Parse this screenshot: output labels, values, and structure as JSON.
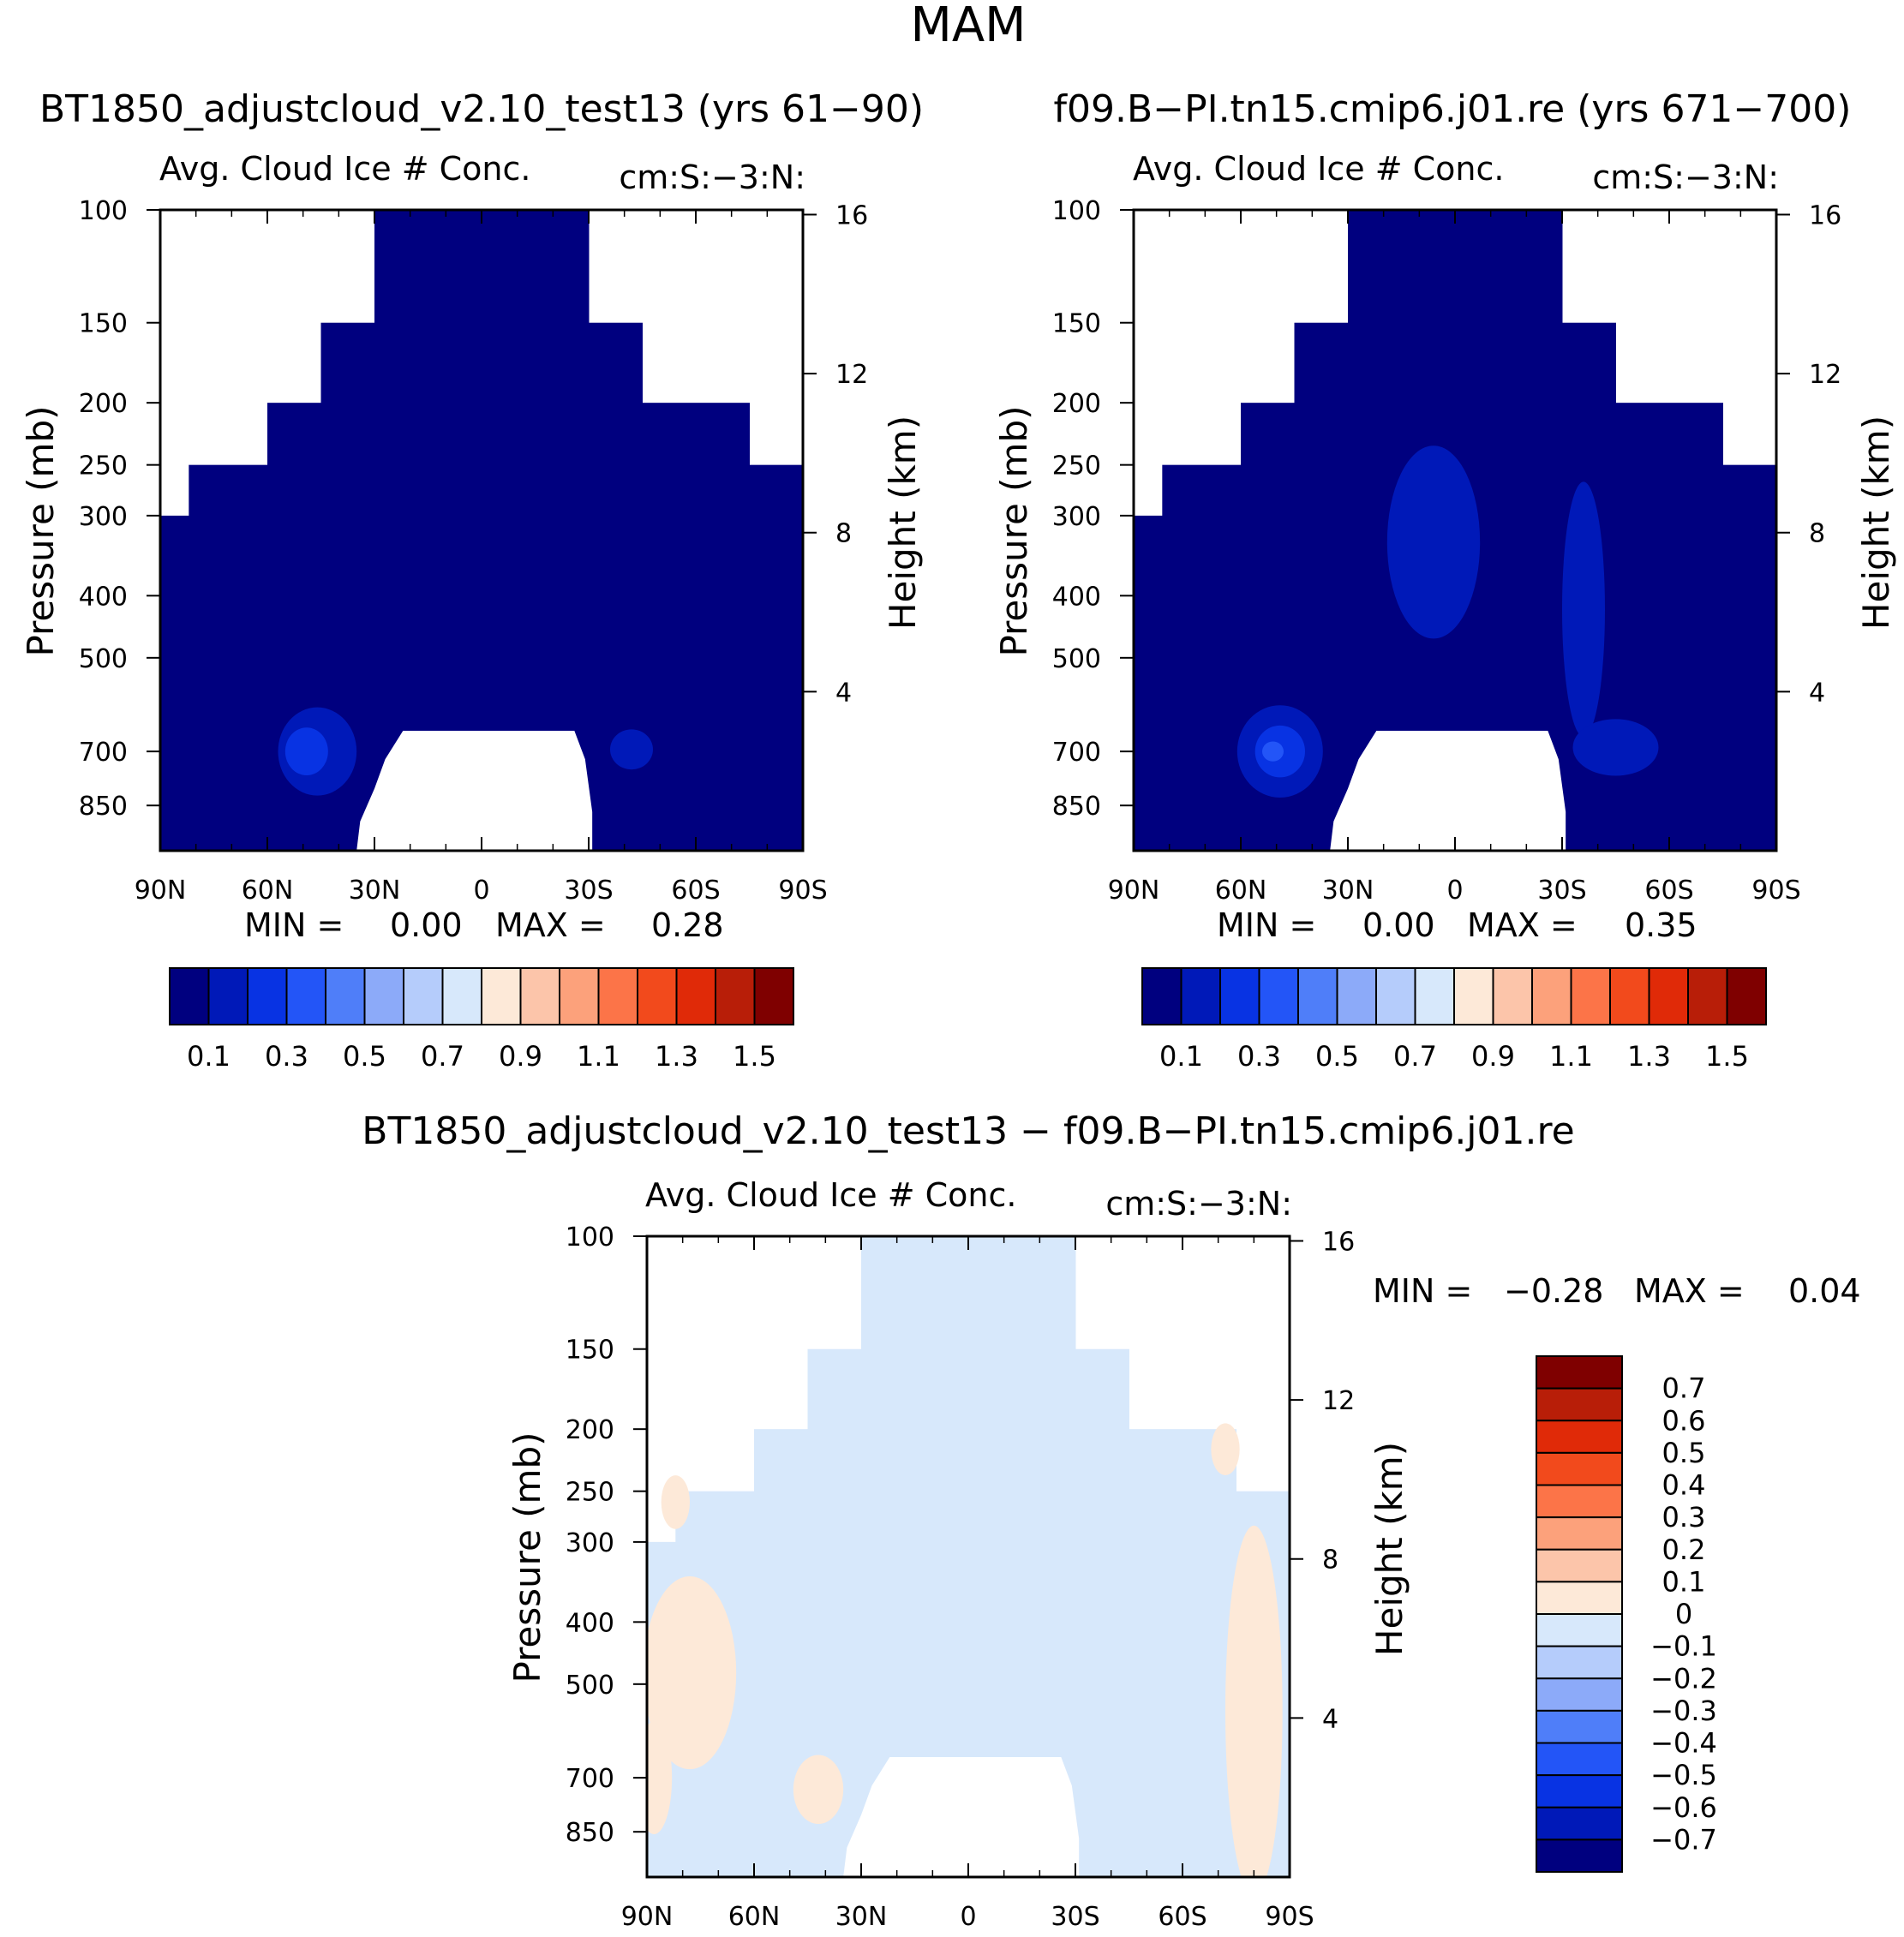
{
  "figure_title": "MAM",
  "chart_data": [
    {
      "type": "heatmap",
      "case_title": "BT1850_adjustcloud_v2.10_test13 (yrs 61−90)",
      "variable": "Avg. Cloud Ice # Conc.",
      "units": "cm:S:−3:N:",
      "xlabel": "",
      "ylabel": "Pressure (mb)",
      "ylabel_right": "Height (km)",
      "x_ticks": [
        "90N",
        "60N",
        "30N",
        "0",
        "30S",
        "60S",
        "90S"
      ],
      "y_ticks": [
        "100",
        "150",
        "200",
        "250",
        "300",
        "400",
        "500",
        "700",
        "850"
      ],
      "y_right_ticks": [
        "16",
        "12",
        "8",
        "4"
      ],
      "xlim": [
        -90,
        90
      ],
      "ylim": [
        100,
        1000
      ],
      "min_label": "MIN =",
      "min_value": "0.00",
      "max_label": "MAX =",
      "max_value": "0.28",
      "colorbar_labels": [
        "0.1",
        "0.3",
        "0.5",
        "0.7",
        "0.9",
        "1.1",
        "1.3",
        "1.5"
      ],
      "colorbar_colors": [
        "#00007f",
        "#0019b8",
        "#0833e3",
        "#2355f7",
        "#4f7ef9",
        "#8caaf9",
        "#b5ccfb",
        "#d7e8fb",
        "#fde9d8",
        "#fcc5aa",
        "#fca17b",
        "#fc7448",
        "#f24a1c",
        "#e02a08",
        "#b81e08",
        "#7f0000"
      ],
      "background_value": 0.02,
      "regions": [
        {
          "lat": -42,
          "p": 695,
          "dlat": 6,
          "dp": 50,
          "value": 0.1
        },
        {
          "lat": 46,
          "p": 700,
          "dlat": 11,
          "dp": 110,
          "value": 0.1
        },
        {
          "lat": 49,
          "p": 700,
          "dlat": 6,
          "dp": 60,
          "value": 0.22
        }
      ]
    },
    {
      "type": "heatmap",
      "case_title": "f09.B−PI.tn15.cmip6.j01.re (yrs 671−700)",
      "variable": "Avg. Cloud Ice # Conc.",
      "units": "cm:S:−3:N:",
      "xlabel": "",
      "ylabel": "Pressure (mb)",
      "ylabel_right": "Height (km)",
      "x_ticks": [
        "90N",
        "60N",
        "30N",
        "0",
        "30S",
        "60S",
        "90S"
      ],
      "y_ticks": [
        "100",
        "150",
        "200",
        "250",
        "300",
        "400",
        "500",
        "700",
        "850"
      ],
      "y_right_ticks": [
        "16",
        "12",
        "8",
        "4"
      ],
      "xlim": [
        -90,
        90
      ],
      "ylim": [
        100,
        1000
      ],
      "min_label": "MIN =",
      "min_value": "0.00",
      "max_label": "MAX =",
      "max_value": "0.35",
      "colorbar_labels": [
        "0.1",
        "0.3",
        "0.5",
        "0.7",
        "0.9",
        "1.1",
        "1.3",
        "1.5"
      ],
      "colorbar_colors": [
        "#00007f",
        "#0019b8",
        "#0833e3",
        "#2355f7",
        "#4f7ef9",
        "#8caaf9",
        "#b5ccfb",
        "#d7e8fb",
        "#fde9d8",
        "#fcc5aa",
        "#fca17b",
        "#fc7448",
        "#f24a1c",
        "#e02a08",
        "#b81e08",
        "#7f0000"
      ],
      "background_value": 0.02,
      "regions": [
        {
          "lat": -36,
          "p": 420,
          "dlat": 6,
          "dp": 180,
          "value": 0.1
        },
        {
          "lat": 6,
          "p": 330,
          "dlat": 13,
          "dp": 110,
          "value": 0.1
        },
        {
          "lat": -45,
          "p": 690,
          "dlat": 12,
          "dp": 70,
          "value": 0.1
        },
        {
          "lat": 49,
          "p": 700,
          "dlat": 12,
          "dp": 115,
          "value": 0.1
        },
        {
          "lat": 49,
          "p": 700,
          "dlat": 7,
          "dp": 65,
          "value": 0.22
        },
        {
          "lat": 51,
          "p": 700,
          "dlat": 3,
          "dp": 25,
          "value": 0.32
        }
      ]
    },
    {
      "type": "heatmap",
      "case_title": "BT1850_adjustcloud_v2.10_test13 − f09.B−PI.tn15.cmip6.j01.re",
      "variable": "Avg. Cloud Ice # Conc.",
      "units": "cm:S:−3:N:",
      "xlabel": "",
      "ylabel": "Pressure (mb)",
      "ylabel_right": "Height (km)",
      "x_ticks": [
        "90N",
        "60N",
        "30N",
        "0",
        "30S",
        "60S",
        "90S"
      ],
      "y_ticks": [
        "100",
        "150",
        "200",
        "250",
        "300",
        "400",
        "500",
        "700",
        "850"
      ],
      "y_right_ticks": [
        "16",
        "12",
        "8",
        "4"
      ],
      "xlim": [
        -90,
        90
      ],
      "ylim": [
        100,
        1000
      ],
      "min_label": "MIN =",
      "min_value": "−0.28",
      "max_label": "MAX =",
      "max_value": "0.04",
      "colorbar_labels": [
        "0.7",
        "0.6",
        "0.5",
        "0.4",
        "0.3",
        "0.2",
        "0.1",
        "0",
        "−0.1",
        "−0.2",
        "−0.3",
        "−0.4",
        "−0.5",
        "−0.6",
        "−0.7"
      ],
      "colorbar_colors": [
        "#7f0000",
        "#b81e08",
        "#e02a08",
        "#f24a1c",
        "#fc7448",
        "#fca17b",
        "#fcc5aa",
        "#fde9d8",
        "#d7e8fb",
        "#b5ccfb",
        "#8caaf9",
        "#4f7ef9",
        "#2355f7",
        "#0833e3",
        "#0019b8",
        "#00007f"
      ],
      "background_value": -0.03,
      "regions": [
        {
          "lat": -80,
          "p": 550,
          "dlat": 8,
          "dp": 320,
          "value": 0.02
        },
        {
          "lat": 78,
          "p": 480,
          "dlat": 13,
          "dp": 160,
          "value": 0.02
        },
        {
          "lat": 88,
          "p": 700,
          "dlat": 5,
          "dp": 140,
          "value": 0.02
        },
        {
          "lat": -72,
          "p": 215,
          "dlat": 4,
          "dp": 20,
          "value": 0.02
        },
        {
          "lat": 42,
          "p": 730,
          "dlat": 7,
          "dp": 90,
          "value": 0.02
        },
        {
          "lat": 82,
          "p": 260,
          "dlat": 4,
          "dp": 25,
          "value": 0.02
        }
      ]
    }
  ]
}
